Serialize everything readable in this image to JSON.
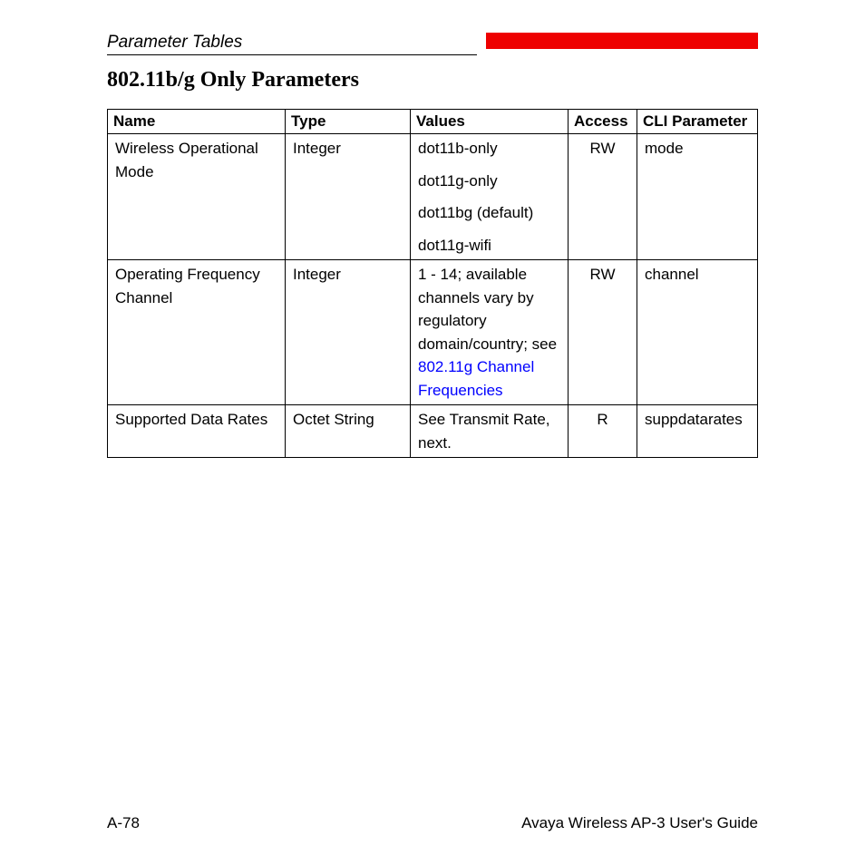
{
  "header": {
    "section_title": "Parameter Tables",
    "red_bar_color": "#ee0000"
  },
  "heading": "802.11b/g Only Parameters",
  "table": {
    "headers": {
      "name": "Name",
      "type": "Type",
      "values": "Values",
      "access": "Access",
      "cli": "CLI Parameter"
    },
    "rows": [
      {
        "name": "Wireless Operational Mode",
        "type": "Integer",
        "values": [
          "dot11b-only",
          "dot11g-only",
          "dot11bg (default)",
          "dot11g-wifi"
        ],
        "access": "RW",
        "cli": "mode"
      },
      {
        "name": "Operating Frequency Channel",
        "type": "Integer",
        "values_text": "1 - 14; available channels vary by regulatory domain/country; see ",
        "values_link": "802.11g Channel Frequencies",
        "access": "RW",
        "cli": "channel"
      },
      {
        "name": "Supported Data Rates",
        "type": "Octet String",
        "values_plain": "See Transmit Rate, next.",
        "access": "R",
        "cli": "suppdatarates"
      }
    ]
  },
  "footer": {
    "page_num": "A-78",
    "doc_title": "Avaya Wireless AP-3 User's Guide"
  },
  "link_color": "#0000ff"
}
